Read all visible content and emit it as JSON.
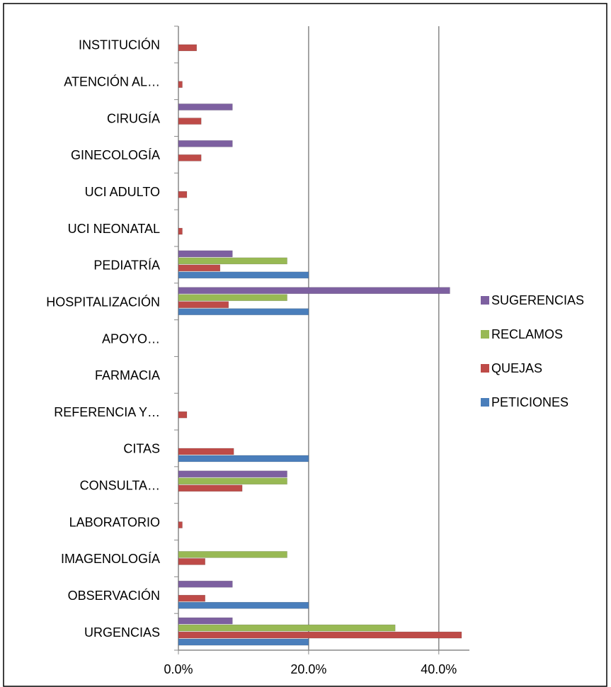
{
  "chart_data": {
    "type": "hbar",
    "categories": [
      "URGENCIAS",
      "OBSERVACIÓN",
      "IMAGENOLOGÍA",
      "LABORATORIO",
      "CONSULTA…",
      "CITAS",
      "REFERENCIA Y…",
      "FARMACIA",
      "APOYO…",
      "HOSPITALIZACIÓN",
      "PEDIATRÍA",
      "UCI NEONATAL",
      "UCI ADULTO",
      "GINECOLOGÍA",
      "CIRUGÍA",
      "ATENCIÓN AL…",
      "INSTITUCIÓN"
    ],
    "series": [
      {
        "name": "PETICIONES",
        "color": "#4a7ebb",
        "values": [
          20,
          20,
          0,
          0,
          0,
          20,
          0,
          0,
          0,
          20,
          20,
          0,
          0,
          0,
          0,
          0,
          0
        ]
      },
      {
        "name": "QUEJAS",
        "color": "#be4b48",
        "values": [
          43.5,
          4.1,
          4.1,
          0.6,
          9.8,
          8.5,
          1.3,
          0,
          0,
          7.7,
          6.4,
          0.6,
          1.3,
          3.5,
          3.5,
          0.6,
          2.8
        ]
      },
      {
        "name": "RECLAMOS",
        "color": "#98b954",
        "values": [
          33.3,
          0,
          16.7,
          0,
          16.7,
          0,
          0,
          0,
          0,
          16.7,
          16.7,
          0,
          0,
          0,
          0,
          0,
          0
        ]
      },
      {
        "name": "SUGERENCIAS",
        "color": "#7d60a0",
        "values": [
          8.3,
          8.3,
          0,
          0,
          16.7,
          0,
          0,
          0,
          0,
          41.7,
          8.3,
          0,
          0,
          8.3,
          8.3,
          0,
          0
        ]
      }
    ],
    "xlim": [
      0,
      44.7
    ],
    "xticks": [
      {
        "value": 0,
        "label": "0.0%"
      },
      {
        "value": 20,
        "label": "20.0%"
      },
      {
        "value": 40,
        "label": "40.0%"
      }
    ],
    "grid": true,
    "legend": "right"
  }
}
